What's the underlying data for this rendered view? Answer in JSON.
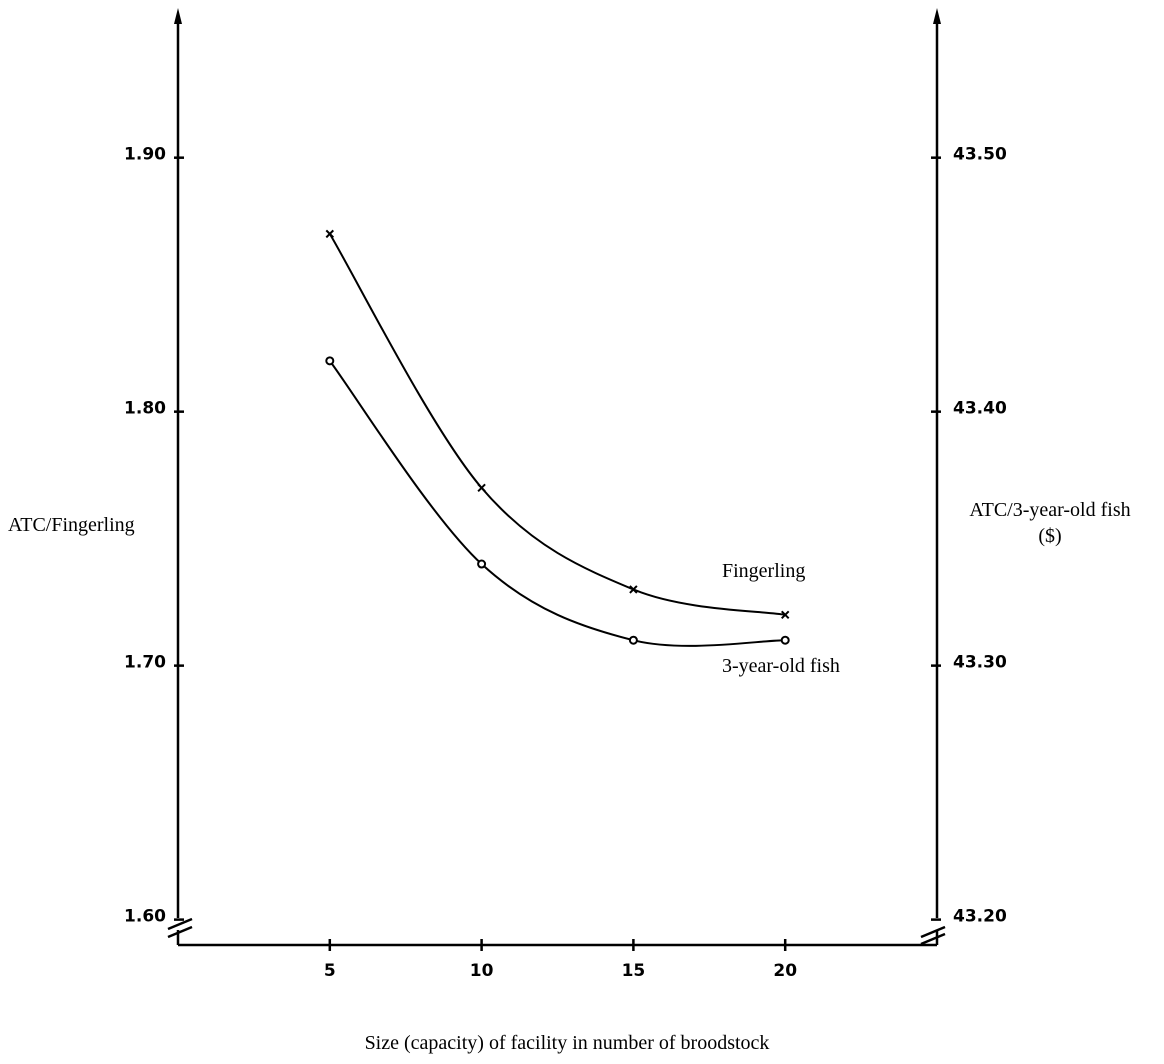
{
  "chart_data": {
    "type": "line",
    "xlabel": "Size (capacity) of facility in number of broodstock",
    "ylabel_left": "ATC/Fingerling",
    "ylabel_right_line1": "ATC/3-year-old fish",
    "ylabel_right_line2": "($)",
    "x_ticks": [
      "5",
      "10",
      "15",
      "20"
    ],
    "x_tick_values": [
      5,
      10,
      15,
      20
    ],
    "xlim": [
      0,
      25
    ],
    "left_ticks": [
      "1.60",
      "1.70",
      "1.80",
      "1.90"
    ],
    "left_tick_values": [
      1.6,
      1.7,
      1.8,
      1.9
    ],
    "ylim_left": [
      1.59,
      1.955
    ],
    "right_ticks": [
      "43.20",
      "43.30",
      "43.40",
      "43.50"
    ],
    "right_tick_values": [
      43.2,
      43.3,
      43.4,
      43.5
    ],
    "ylim_right": [
      43.19,
      43.555
    ],
    "series": [
      {
        "name": "Fingerling",
        "marker": "x",
        "axis": "left",
        "x": [
          5,
          10,
          15,
          20
        ],
        "values": [
          1.87,
          1.77,
          1.73,
          1.72
        ]
      },
      {
        "name": "3-year-old fish",
        "marker": "o",
        "axis": "right",
        "x": [
          5,
          10,
          15,
          20
        ],
        "values": [
          43.42,
          43.34,
          43.31,
          43.31
        ]
      }
    ],
    "grid": false,
    "axis_breaks": true
  }
}
